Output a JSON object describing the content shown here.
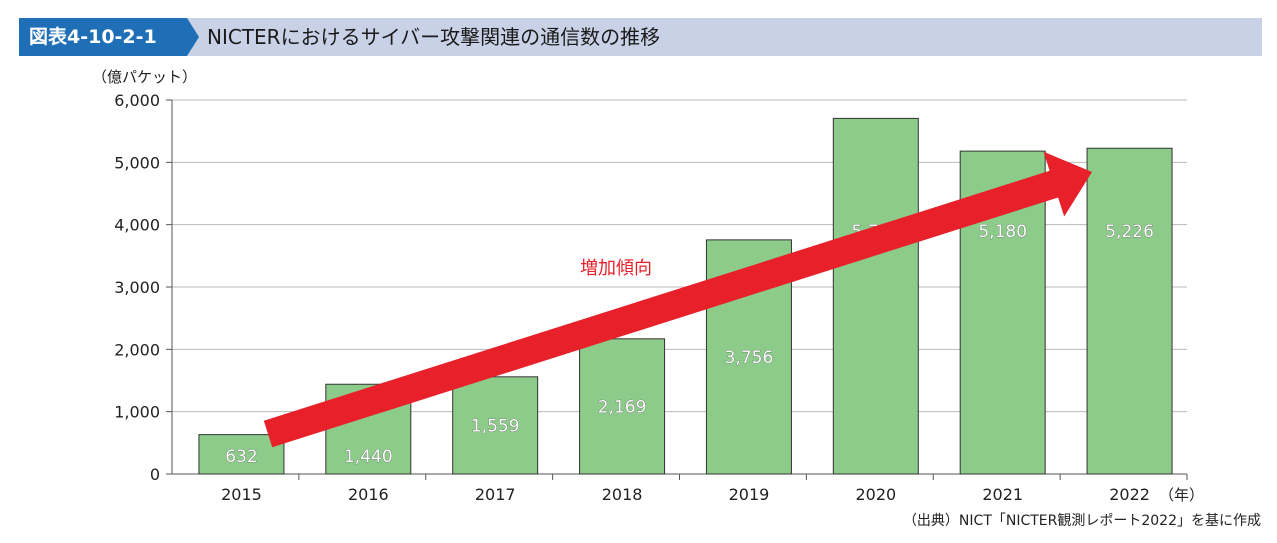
{
  "header": {
    "badge": "図表4-10-2-1",
    "title": "NICTERにおけるサイバー攻撃関連の通信数の推移"
  },
  "chart_data": {
    "type": "bar",
    "ylabel": "（億パケット）",
    "xunit": "（年）",
    "categories": [
      "2015",
      "2016",
      "2017",
      "2018",
      "2019",
      "2020",
      "2021",
      "2022"
    ],
    "values": [
      632,
      1440,
      1559,
      2169,
      3756,
      5705,
      5180,
      5226
    ],
    "value_labels": [
      "632",
      "1,440",
      "1,559",
      "2,169",
      "3,756",
      "5,705",
      "5,180",
      "5,226"
    ],
    "ylim": [
      0,
      6000
    ],
    "yticks": [
      0,
      1000,
      2000,
      3000,
      4000,
      5000,
      6000
    ],
    "ytick_labels": [
      "0",
      "1,000",
      "2,000",
      "3,000",
      "4,000",
      "5,000",
      "6,000"
    ],
    "grid": true,
    "bar_color": "#8ccb8a",
    "arrow_color": "#e8202a",
    "annotation": "増加傾向"
  },
  "source": "（出典）NICT「NICTER観測レポート2022」を基に作成"
}
